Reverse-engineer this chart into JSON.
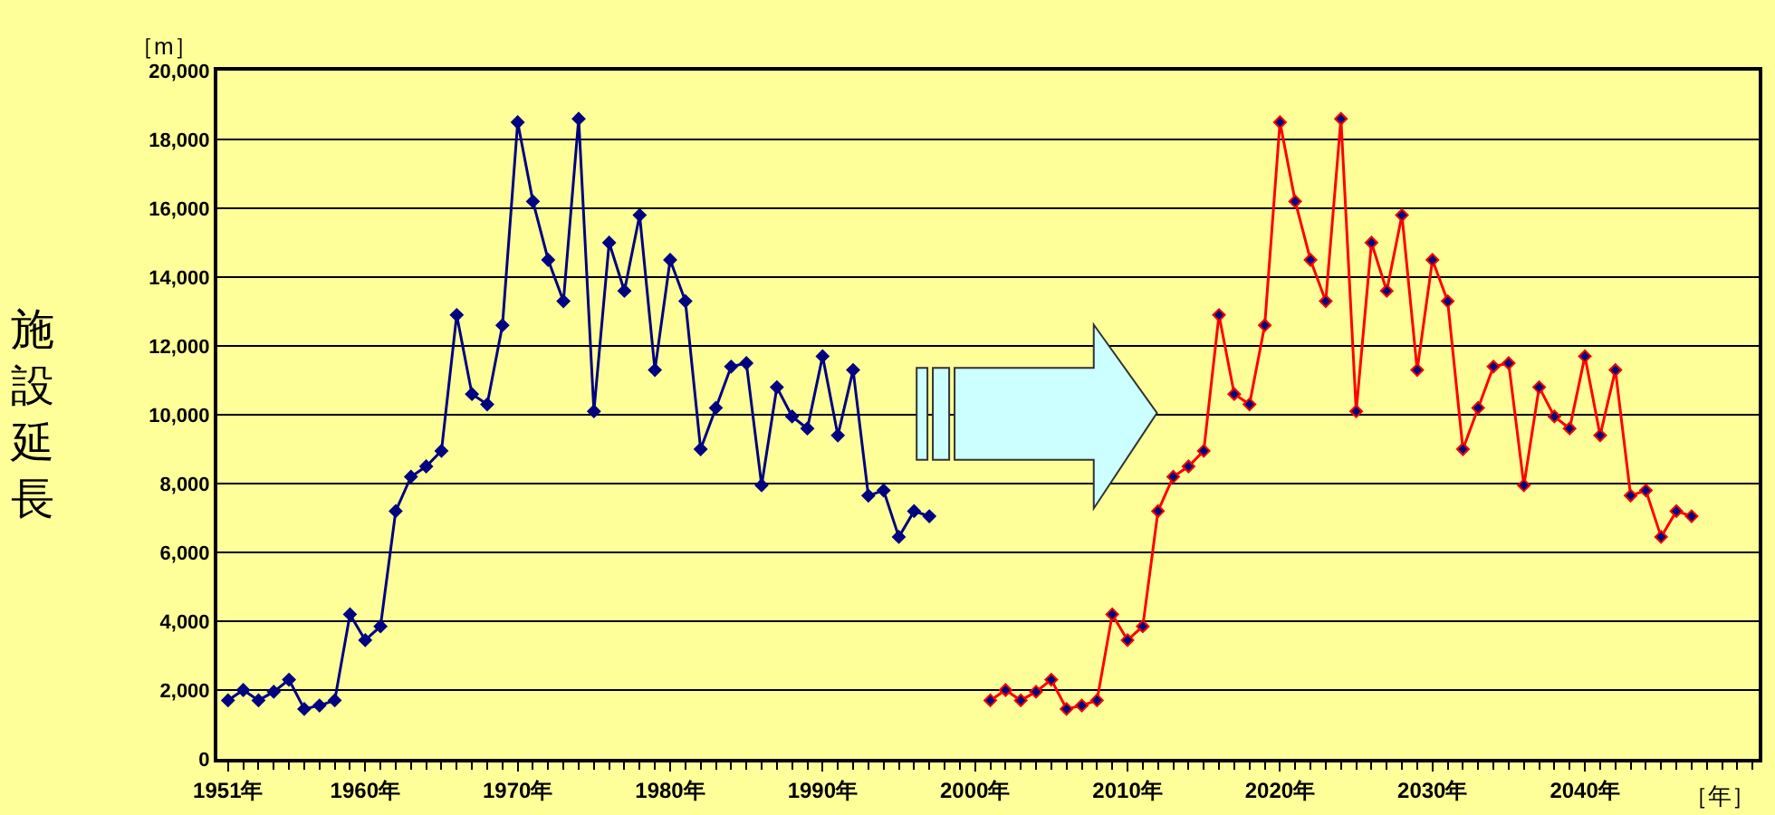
{
  "chart_data": {
    "type": "line",
    "ylabel": "施設延長",
    "annotations": [
      "［m］",
      "［年］"
    ],
    "xlim": [
      1950.3,
      2051.4
    ],
    "xticks": [
      {
        "value": 1951,
        "label": "1951年"
      },
      {
        "value": 1960,
        "label": "1960年"
      },
      {
        "value": 1970,
        "label": "1970年"
      },
      {
        "value": 1980,
        "label": "1980年"
      },
      {
        "value": 1990,
        "label": "1990年"
      },
      {
        "value": 2000,
        "label": "2000年"
      },
      {
        "value": 2010,
        "label": "2010年"
      },
      {
        "value": 2020,
        "label": "2020年"
      },
      {
        "value": 2030,
        "label": "2030年"
      },
      {
        "value": 2040,
        "label": "2040年"
      }
    ],
    "ylim": [
      0,
      20000
    ],
    "yticks": [
      0,
      {
        "value": 2000,
        "label": "2,000"
      },
      {
        "value": 4000,
        "label": "4,000"
      },
      {
        "value": 6000,
        "label": "6,000"
      },
      {
        "value": 8000,
        "label": "8,000"
      },
      {
        "value": 10000,
        "label": "10,000"
      },
      {
        "value": 12000,
        "label": "12,000"
      },
      {
        "value": 14000,
        "label": "14,000"
      },
      {
        "value": 16000,
        "label": "16,000"
      },
      {
        "value": 18000,
        "label": "18,000"
      },
      {
        "value": 20000,
        "label": "20,000"
      }
    ],
    "grid": "y",
    "marker": "diamond",
    "line_style": "solid",
    "series": [
      {
        "color": "#000080",
        "x": [
          1951,
          1952,
          1953,
          1954,
          1955,
          1956,
          1957,
          1958,
          1959,
          1960,
          1961,
          1962,
          1963,
          1964,
          1965,
          1966,
          1967,
          1968,
          1969,
          1970,
          1971,
          1972,
          1973,
          1974,
          1975,
          1976,
          1977,
          1978,
          1979,
          1980,
          1981,
          1982,
          1983,
          1984,
          1985,
          1986,
          1987,
          1988,
          1989,
          1990,
          1991,
          1992,
          1993,
          1994,
          1995,
          1996,
          1997
        ],
        "values": [
          1700,
          2000,
          1700,
          1950,
          2300,
          1450,
          1550,
          1700,
          4200,
          3450,
          3850,
          7200,
          8200,
          8500,
          8950,
          12900,
          10600,
          10300,
          12600,
          18500,
          16200,
          14500,
          13300,
          18600,
          10100,
          15000,
          13600,
          15800,
          11300,
          14500,
          13300,
          9000,
          10200,
          11400,
          11500,
          7950,
          10800,
          9950,
          9600,
          11700,
          9400,
          11300,
          7650,
          7800,
          6450,
          7200,
          7050
        ]
      },
      {
        "color": "#ff0000",
        "x": [
          2001,
          2002,
          2003,
          2004,
          2005,
          2006,
          2007,
          2008,
          2009,
          2010,
          2011,
          2012,
          2013,
          2014,
          2015,
          2016,
          2017,
          2018,
          2019,
          2020,
          2021,
          2022,
          2023,
          2024,
          2025,
          2026,
          2027,
          2028,
          2029,
          2030,
          2031,
          2032,
          2033,
          2034,
          2035,
          2036,
          2037,
          2038,
          2039,
          2040,
          2041,
          2042,
          2043,
          2044,
          2045,
          2046,
          2047
        ],
        "values": [
          1700,
          2000,
          1700,
          1950,
          2300,
          1450,
          1550,
          1700,
          4200,
          3450,
          3850,
          7200,
          8200,
          8500,
          8950,
          12900,
          10600,
          10300,
          12600,
          18500,
          16200,
          14500,
          13300,
          18600,
          10100,
          15000,
          13600,
          15800,
          11300,
          14500,
          13300,
          9000,
          10200,
          11400,
          11500,
          7950,
          10800,
          9950,
          9600,
          11700,
          9400,
          11300,
          7650,
          7800,
          6450,
          7200,
          7050
        ]
      }
    ]
  }
}
